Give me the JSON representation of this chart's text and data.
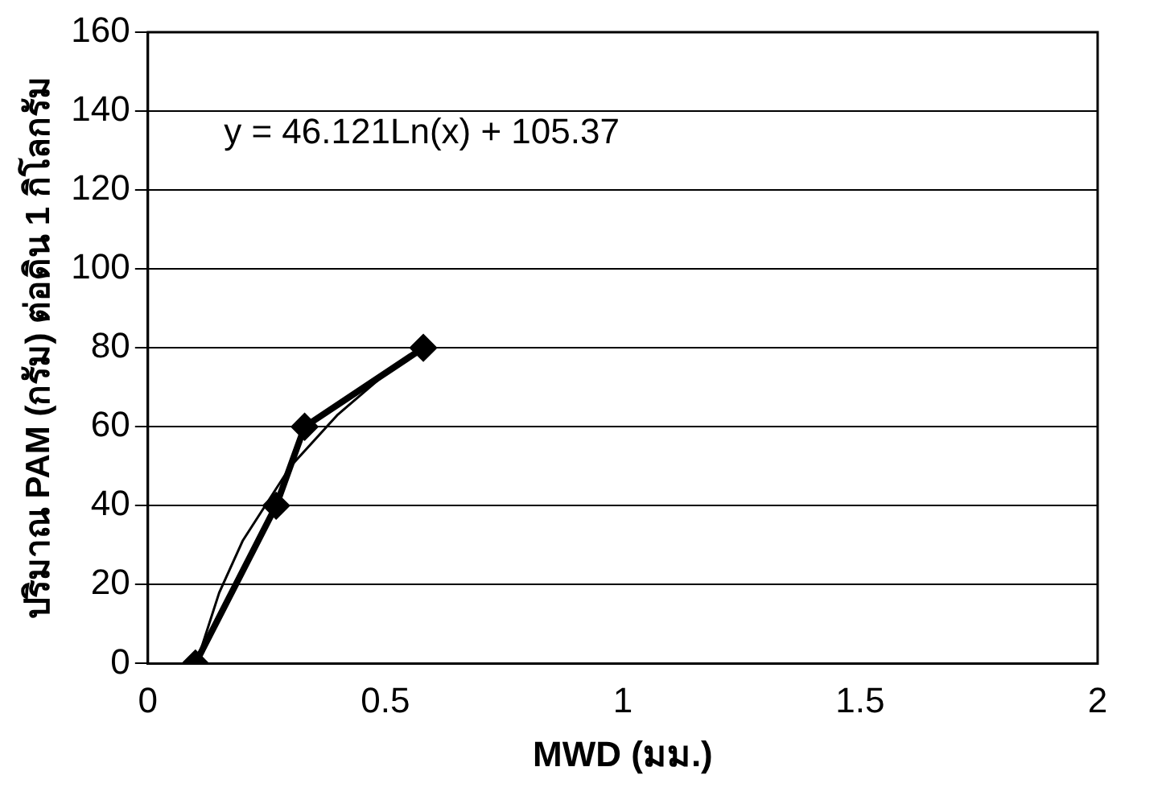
{
  "chart_data": {
    "type": "line",
    "xlabel": "MWD (มม.)",
    "ylabel": "ปริมาณ PAM (กรัม) ต่อดิน 1 กิโลกรัม",
    "annotations": [
      "y = 46.121Ln(x) + 105.37"
    ],
    "series": [
      {
        "color": "#000000",
        "marker": "diamond",
        "x": [
          0.1,
          0.27,
          0.33,
          0.58
        ],
        "values": [
          0,
          40,
          60,
          80
        ]
      },
      {
        "color": "#000000",
        "marker": "none",
        "x": [
          0.102,
          0.15,
          0.2,
          0.3,
          0.4,
          0.5,
          0.58
        ],
        "values": [
          0,
          17.9,
          31.2,
          49.9,
          63.1,
          73.4,
          80.2
        ]
      }
    ],
    "xlim": [
      0,
      2
    ],
    "xticks": [
      0,
      0.5,
      1,
      1.5,
      2
    ],
    "ylim": [
      0,
      160
    ],
    "yticks": [
      0,
      20,
      40,
      60,
      80,
      100,
      120,
      140,
      160
    ],
    "grid": "y",
    "legend": false
  }
}
